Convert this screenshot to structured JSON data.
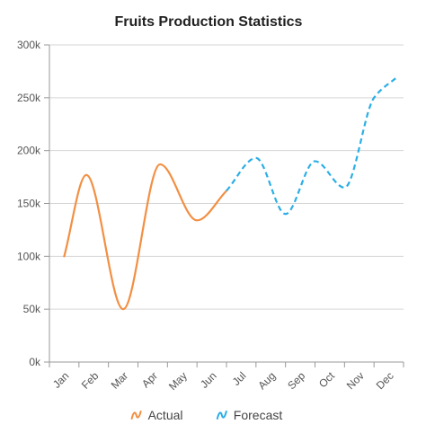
{
  "chart_data": {
    "type": "line",
    "title": "Fruits Production Statistics",
    "xlabel": "",
    "ylabel": "",
    "categories": [
      "Jan",
      "Feb",
      "Mar",
      "Apr",
      "May",
      "Jun",
      "Jul",
      "Aug",
      "Sep",
      "Oct",
      "Nov",
      "Dec"
    ],
    "ylim": [
      0,
      300000
    ],
    "y_ticks": [
      0,
      50000,
      100000,
      150000,
      200000,
      250000,
      300000
    ],
    "y_tick_labels": [
      "0k",
      "50k",
      "100k",
      "150k",
      "200k",
      "250k",
      "300k"
    ],
    "grid": true,
    "legend_position": "bottom",
    "series": [
      {
        "name": "Actual",
        "color": "#f28f43",
        "dash": "solid",
        "x": [
          0,
          0.75,
          2,
          3.25,
          4.5,
          5.5
        ],
        "values": [
          100000,
          177000,
          50000,
          187000,
          134000,
          162000
        ]
      },
      {
        "name": "Forecast",
        "color": "#2caee6",
        "dash": "dashed",
        "x": [
          5.5,
          6.5,
          7.5,
          8.5,
          9.5,
          10.5,
          11.3
        ],
        "values": [
          162000,
          193000,
          140000,
          190000,
          165000,
          250000,
          270000
        ]
      }
    ]
  }
}
